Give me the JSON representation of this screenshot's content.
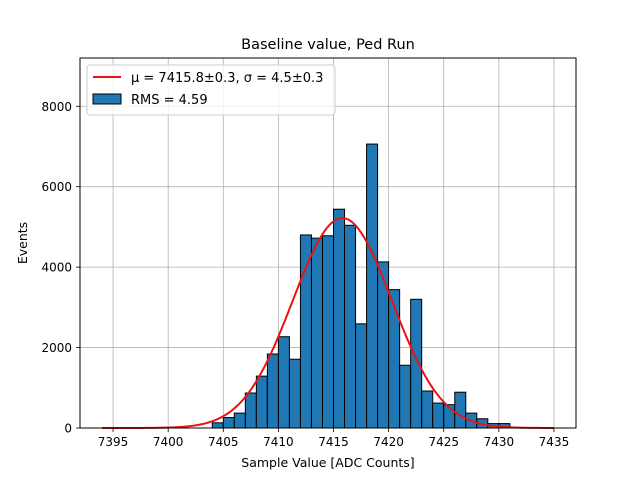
{
  "chart_data": {
    "type": "bar",
    "title": "Baseline value, Ped Run",
    "xlabel": "Sample Value [ADC Counts]",
    "ylabel": "Events",
    "xlim": [
      7392.0,
      7437.0
    ],
    "ylim": [
      0,
      9200
    ],
    "xticks": [
      7395,
      7400,
      7405,
      7410,
      7415,
      7420,
      7425,
      7430,
      7435
    ],
    "yticks": [
      0,
      2000,
      4000,
      6000,
      8000
    ],
    "grid": true,
    "legend_position": "top-left",
    "bin_width": 1,
    "bins": [
      {
        "left": 7404,
        "count": 130
      },
      {
        "left": 7405,
        "count": 260
      },
      {
        "left": 7406,
        "count": 370
      },
      {
        "left": 7407,
        "count": 870
      },
      {
        "left": 7408,
        "count": 1290
      },
      {
        "left": 7409,
        "count": 1840
      },
      {
        "left": 7410,
        "count": 2270
      },
      {
        "left": 7411,
        "count": 1710
      },
      {
        "left": 7412,
        "count": 4800
      },
      {
        "left": 7413,
        "count": 4720
      },
      {
        "left": 7414,
        "count": 4780
      },
      {
        "left": 7415,
        "count": 5440
      },
      {
        "left": 7416,
        "count": 5040
      },
      {
        "left": 7417,
        "count": 2590
      },
      {
        "left": 7418,
        "count": 7060
      },
      {
        "left": 7419,
        "count": 4130
      },
      {
        "left": 7420,
        "count": 3440
      },
      {
        "left": 7421,
        "count": 1560
      },
      {
        "left": 7422,
        "count": 3200
      },
      {
        "left": 7423,
        "count": 920
      },
      {
        "left": 7424,
        "count": 620
      },
      {
        "left": 7425,
        "count": 580
      },
      {
        "left": 7426,
        "count": 890
      },
      {
        "left": 7427,
        "count": 370
      },
      {
        "left": 7428,
        "count": 230
      },
      {
        "left": 7429,
        "count": 110
      },
      {
        "left": 7430,
        "count": 110
      }
    ],
    "fit": {
      "mu": 7415.8,
      "sigma": 4.5,
      "amplitude": 5220,
      "x_range": [
        7394,
        7435
      ]
    },
    "series": [
      {
        "name": "$\\mu = 7415.8{\\pm}0.3,\\sigma = 4.5{\\pm}0.3$",
        "type": "line",
        "color": "#ee1111"
      },
      {
        "name": "RMS = 4.59",
        "type": "bar",
        "color": "#1f77b4"
      }
    ],
    "legend": {
      "fit_label": "μ = 7415.8±0.3, σ = 4.5±0.3",
      "hist_label": "RMS = 4.59"
    }
  }
}
